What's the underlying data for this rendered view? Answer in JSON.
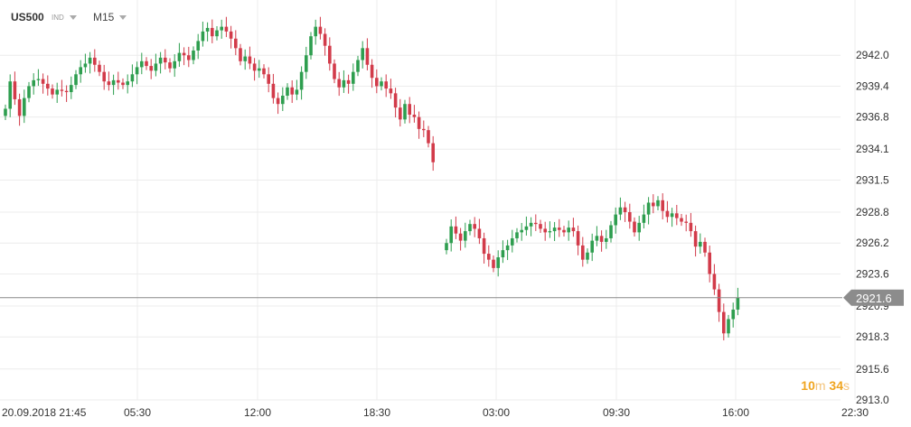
{
  "toolbar": {
    "symbol": "US500",
    "type_label": "IND",
    "timeframe": "M15"
  },
  "countdown": {
    "minutes": "10",
    "min_unit": "m",
    "seconds": "34",
    "sec_unit": "s"
  },
  "colors": {
    "up": "#2e9e4f",
    "down": "#d23b4a",
    "grid": "#ececec",
    "price_line": "#888888",
    "badge": "#8c8c8c"
  },
  "chart_data": {
    "type": "candlestick",
    "symbol": "US500",
    "timeframe": "M15",
    "current_price": "2921.6",
    "ylim": [
      2913.0,
      2944.6
    ],
    "y_ticks": [
      "2942.0",
      "2939.4",
      "2936.8",
      "2934.1",
      "2931.5",
      "2928.8",
      "2926.2",
      "2923.6",
      "2920.9",
      "2918.3",
      "2915.6",
      "2913.0"
    ],
    "x_ticks": [
      "20.09.2018  21:45",
      "05:30",
      "12:00",
      "18:30",
      "03:00",
      "09:30",
      "16:00",
      "22:30"
    ],
    "session1_closes": [
      2937.5,
      2939.8,
      2938.3,
      2936.9,
      2938.4,
      2939.4,
      2939.9,
      2940.0,
      2939.6,
      2939.2,
      2938.7,
      2939.1,
      2939.0,
      2938.9,
      2939.5,
      2940.4,
      2941.0,
      2941.3,
      2941.8,
      2941.2,
      2940.6,
      2939.8,
      2939.5,
      2939.9,
      2939.7,
      2939.5,
      2939.8,
      2940.4,
      2941.0,
      2941.5,
      2941.1,
      2940.7,
      2941.3,
      2941.8,
      2941.4,
      2940.9,
      2941.5,
      2942.2,
      2942.0,
      2941.6,
      2942.4,
      2943.2,
      2944.0,
      2944.3,
      2943.6,
      2944.1,
      2944.4,
      2944.0,
      2943.4,
      2942.6,
      2941.5,
      2941.9,
      2941.3,
      2940.7,
      2940.9,
      2940.4,
      2939.6,
      2938.4,
      2937.9,
      2938.6,
      2939.3,
      2938.7,
      2939.1,
      2940.6,
      2942.0,
      2943.6,
      2944.4,
      2943.8,
      2942.8,
      2941.3,
      2940.0,
      2939.3,
      2939.9,
      2939.6,
      2940.6,
      2941.6,
      2942.6,
      2941.2,
      2940.1,
      2939.4,
      2939.8,
      2939.2,
      2938.8,
      2937.6,
      2936.6,
      2937.9,
      2937.0,
      2936.8,
      2935.8,
      2935.7,
      2934.6,
      2933.0
    ],
    "session2_closes": [
      2926.2,
      2927.6,
      2927.0,
      2926.4,
      2927.2,
      2927.8,
      2927.4,
      2926.6,
      2925.3,
      2924.8,
      2924.1,
      2925.0,
      2925.6,
      2926.0,
      2926.6,
      2927.1,
      2927.3,
      2927.6,
      2927.9,
      2927.8,
      2927.4,
      2927.1,
      2927.2,
      2927.5,
      2927.3,
      2927.1,
      2927.5,
      2927.2,
      2926.0,
      2924.8,
      2925.4,
      2926.4,
      2926.8,
      2926.3,
      2926.6,
      2927.7,
      2928.6,
      2929.2,
      2928.8,
      2928.0,
      2927.1,
      2927.9,
      2928.6,
      2929.6,
      2929.3,
      2929.8,
      2928.9,
      2928.4,
      2928.7,
      2928.3,
      2928.0,
      2927.9,
      2927.2,
      2925.9,
      2926.3,
      2925.4,
      2923.6,
      2922.3,
      2920.4,
      2918.6,
      2919.8,
      2920.6,
      2921.6
    ]
  }
}
